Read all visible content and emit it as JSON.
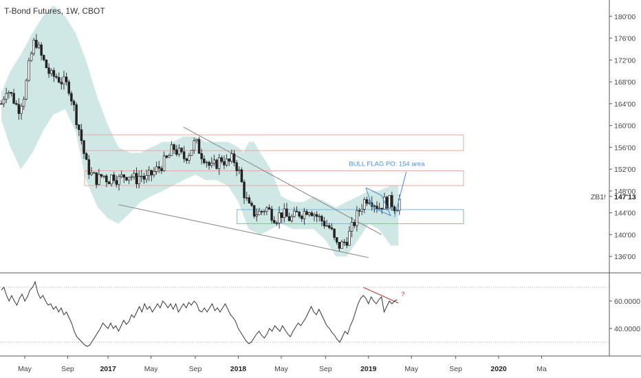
{
  "chart_data": {
    "type": "candlestick",
    "title": "T-Bond Futures, 1W, CBOT",
    "symbol_label": "ZB1!",
    "last_price_label": "147'13",
    "price_axis": {
      "range": [
        133,
        183
      ],
      "ticks": [
        136,
        140,
        144,
        148,
        152,
        156,
        160,
        164,
        168,
        172,
        176,
        180
      ],
      "tick_labels": [
        "136'00",
        "140'00",
        "144'00",
        "148'00",
        "152'00",
        "156'00",
        "160'00",
        "164'00",
        "168'00",
        "172'00",
        "176'00",
        "180'00"
      ]
    },
    "rsi_axis": {
      "range": [
        20,
        80
      ],
      "ticks": [
        40,
        60
      ],
      "tick_labels": [
        "40.0000",
        "60.0000"
      ],
      "bands": [
        30,
        70
      ]
    },
    "time_axis": {
      "range": [
        2016.17,
        2020.85
      ],
      "ticks": [
        {
          "t": 2016.36,
          "label": "May",
          "bold": false
        },
        {
          "t": 2016.69,
          "label": "Sep",
          "bold": false
        },
        {
          "t": 2017.0,
          "label": "2017",
          "bold": true
        },
        {
          "t": 2017.33,
          "label": "May",
          "bold": false
        },
        {
          "t": 2017.67,
          "label": "Sep",
          "bold": false
        },
        {
          "t": 2018.0,
          "label": "2018",
          "bold": true
        },
        {
          "t": 2018.33,
          "label": "May",
          "bold": false
        },
        {
          "t": 2018.67,
          "label": "Sep",
          "bold": false
        },
        {
          "t": 2019.0,
          "label": "2019",
          "bold": true
        },
        {
          "t": 2019.33,
          "label": "May",
          "bold": false
        },
        {
          "t": 2019.67,
          "label": "Sep",
          "bold": false
        },
        {
          "t": 2020.0,
          "label": "2020",
          "bold": true
        },
        {
          "t": 2020.33,
          "label": "Ma",
          "bold": false
        }
      ]
    },
    "price_path": [
      [
        2016.18,
        164
      ],
      [
        2016.22,
        167
      ],
      [
        2016.27,
        165
      ],
      [
        2016.31,
        163
      ],
      [
        2016.36,
        166
      ],
      [
        2016.4,
        172
      ],
      [
        2016.44,
        176
      ],
      [
        2016.48,
        173
      ],
      [
        2016.52,
        171
      ],
      [
        2016.56,
        169
      ],
      [
        2016.6,
        169
      ],
      [
        2016.65,
        168
      ],
      [
        2016.7,
        167
      ],
      [
        2016.75,
        162
      ],
      [
        2016.79,
        158
      ],
      [
        2016.83,
        153
      ],
      [
        2016.87,
        151
      ],
      [
        2016.92,
        150
      ],
      [
        2016.96,
        151
      ],
      [
        2017.0,
        150
      ],
      [
        2017.04,
        151
      ],
      [
        2017.08,
        150
      ],
      [
        2017.13,
        151
      ],
      [
        2017.17,
        151
      ],
      [
        2017.21,
        150
      ],
      [
        2017.25,
        151
      ],
      [
        2017.29,
        150
      ],
      [
        2017.33,
        151
      ],
      [
        2017.38,
        152
      ],
      [
        2017.42,
        153
      ],
      [
        2017.46,
        154
      ],
      [
        2017.5,
        156
      ],
      [
        2017.54,
        155
      ],
      [
        2017.58,
        154
      ],
      [
        2017.62,
        155
      ],
      [
        2017.67,
        157
      ],
      [
        2017.71,
        155
      ],
      [
        2017.75,
        154
      ],
      [
        2017.79,
        152
      ],
      [
        2017.83,
        153
      ],
      [
        2017.87,
        154
      ],
      [
        2017.92,
        153
      ],
      [
        2017.96,
        154
      ],
      [
        2018.0,
        152
      ],
      [
        2018.04,
        148
      ],
      [
        2018.08,
        145
      ],
      [
        2018.12,
        144
      ],
      [
        2018.17,
        144
      ],
      [
        2018.21,
        145
      ],
      [
        2018.25,
        144
      ],
      [
        2018.29,
        143
      ],
      [
        2018.33,
        144
      ],
      [
        2018.38,
        143
      ],
      [
        2018.42,
        143
      ],
      [
        2018.46,
        144
      ],
      [
        2018.5,
        144
      ],
      [
        2018.54,
        145
      ],
      [
        2018.58,
        144
      ],
      [
        2018.62,
        143
      ],
      [
        2018.67,
        142
      ],
      [
        2018.71,
        141
      ],
      [
        2018.75,
        138
      ],
      [
        2018.79,
        138
      ],
      [
        2018.83,
        139
      ],
      [
        2018.87,
        141
      ],
      [
        2018.92,
        144
      ],
      [
        2018.96,
        146
      ],
      [
        2019.0,
        147
      ],
      [
        2019.04,
        146
      ],
      [
        2019.08,
        145
      ],
      [
        2019.12,
        146
      ],
      [
        2019.17,
        146
      ],
      [
        2019.21,
        145
      ],
      [
        2019.25,
        147
      ]
    ],
    "rsi": [
      [
        2016.18,
        68
      ],
      [
        2016.2,
        70
      ],
      [
        2016.22,
        64
      ],
      [
        2016.24,
        60
      ],
      [
        2016.26,
        64
      ],
      [
        2016.28,
        60
      ],
      [
        2016.3,
        57
      ],
      [
        2016.32,
        62
      ],
      [
        2016.34,
        65
      ],
      [
        2016.36,
        60
      ],
      [
        2016.38,
        63
      ],
      [
        2016.4,
        68
      ],
      [
        2016.42,
        70
      ],
      [
        2016.44,
        74
      ],
      [
        2016.46,
        66
      ],
      [
        2016.48,
        62
      ],
      [
        2016.5,
        64
      ],
      [
        2016.52,
        60
      ],
      [
        2016.54,
        57
      ],
      [
        2016.56,
        58
      ],
      [
        2016.58,
        54
      ],
      [
        2016.6,
        56
      ],
      [
        2016.62,
        52
      ],
      [
        2016.64,
        55
      ],
      [
        2016.66,
        50
      ],
      [
        2016.68,
        52
      ],
      [
        2016.7,
        48
      ],
      [
        2016.72,
        44
      ],
      [
        2016.74,
        38
      ],
      [
        2016.76,
        34
      ],
      [
        2016.78,
        32
      ],
      [
        2016.8,
        30
      ],
      [
        2016.82,
        28
      ],
      [
        2016.84,
        27
      ],
      [
        2016.86,
        28
      ],
      [
        2016.88,
        31
      ],
      [
        2016.9,
        34
      ],
      [
        2016.92,
        37
      ],
      [
        2016.94,
        40
      ],
      [
        2016.96,
        44
      ],
      [
        2016.98,
        42
      ],
      [
        2017.0,
        40
      ],
      [
        2017.02,
        44
      ],
      [
        2017.04,
        40
      ],
      [
        2017.06,
        42
      ],
      [
        2017.08,
        38
      ],
      [
        2017.1,
        42
      ],
      [
        2017.12,
        46
      ],
      [
        2017.14,
        43
      ],
      [
        2017.16,
        45
      ],
      [
        2017.18,
        50
      ],
      [
        2017.2,
        48
      ],
      [
        2017.22,
        52
      ],
      [
        2017.24,
        56
      ],
      [
        2017.26,
        52
      ],
      [
        2017.28,
        58
      ],
      [
        2017.3,
        54
      ],
      [
        2017.32,
        56
      ],
      [
        2017.34,
        52
      ],
      [
        2017.36,
        55
      ],
      [
        2017.38,
        58
      ],
      [
        2017.4,
        55
      ],
      [
        2017.42,
        60
      ],
      [
        2017.44,
        58
      ],
      [
        2017.46,
        55
      ],
      [
        2017.48,
        58
      ],
      [
        2017.5,
        54
      ],
      [
        2017.52,
        58
      ],
      [
        2017.54,
        52
      ],
      [
        2017.56,
        55
      ],
      [
        2017.58,
        58
      ],
      [
        2017.6,
        55
      ],
      [
        2017.62,
        59
      ],
      [
        2017.64,
        57
      ],
      [
        2017.66,
        60
      ],
      [
        2017.68,
        58
      ],
      [
        2017.7,
        53
      ],
      [
        2017.72,
        52
      ],
      [
        2017.74,
        55
      ],
      [
        2017.76,
        52
      ],
      [
        2017.78,
        55
      ],
      [
        2017.8,
        58
      ],
      [
        2017.82,
        53
      ],
      [
        2017.84,
        55
      ],
      [
        2017.86,
        52
      ],
      [
        2017.88,
        55
      ],
      [
        2017.9,
        58
      ],
      [
        2017.92,
        54
      ],
      [
        2017.94,
        50
      ],
      [
        2017.96,
        48
      ],
      [
        2017.98,
        45
      ],
      [
        2018.0,
        40
      ],
      [
        2018.02,
        37
      ],
      [
        2018.04,
        34
      ],
      [
        2018.06,
        31
      ],
      [
        2018.08,
        29
      ],
      [
        2018.1,
        30
      ],
      [
        2018.12,
        33
      ],
      [
        2018.14,
        36
      ],
      [
        2018.16,
        38
      ],
      [
        2018.18,
        35
      ],
      [
        2018.2,
        33
      ],
      [
        2018.22,
        36
      ],
      [
        2018.24,
        40
      ],
      [
        2018.26,
        38
      ],
      [
        2018.28,
        42
      ],
      [
        2018.3,
        40
      ],
      [
        2018.32,
        38
      ],
      [
        2018.34,
        42
      ],
      [
        2018.36,
        39
      ],
      [
        2018.38,
        36
      ],
      [
        2018.4,
        34
      ],
      [
        2018.42,
        38
      ],
      [
        2018.44,
        41
      ],
      [
        2018.46,
        44
      ],
      [
        2018.48,
        42
      ],
      [
        2018.5,
        45
      ],
      [
        2018.52,
        48
      ],
      [
        2018.54,
        52
      ],
      [
        2018.56,
        56
      ],
      [
        2018.58,
        52
      ],
      [
        2018.6,
        50
      ],
      [
        2018.62,
        54
      ],
      [
        2018.64,
        50
      ],
      [
        2018.66,
        46
      ],
      [
        2018.68,
        42
      ],
      [
        2018.7,
        40
      ],
      [
        2018.72,
        37
      ],
      [
        2018.74,
        35
      ],
      [
        2018.76,
        32
      ],
      [
        2018.78,
        30
      ],
      [
        2018.8,
        34
      ],
      [
        2018.82,
        38
      ],
      [
        2018.84,
        36
      ],
      [
        2018.86,
        42
      ],
      [
        2018.88,
        46
      ],
      [
        2018.9,
        52
      ],
      [
        2018.92,
        58
      ],
      [
        2018.94,
        62
      ],
      [
        2018.96,
        64
      ],
      [
        2018.98,
        62
      ],
      [
        2019.0,
        58
      ],
      [
        2019.02,
        63
      ],
      [
        2019.04,
        60
      ],
      [
        2019.06,
        58
      ],
      [
        2019.08,
        61
      ],
      [
        2019.1,
        63
      ],
      [
        2019.12,
        52
      ],
      [
        2019.14,
        56
      ],
      [
        2019.16,
        60
      ],
      [
        2019.18,
        58
      ],
      [
        2019.2,
        60
      ],
      [
        2019.22,
        61
      ]
    ],
    "bollinger_band_upper": [
      [
        2016.18,
        166
      ],
      [
        2016.25,
        170
      ],
      [
        2016.33,
        173
      ],
      [
        2016.42,
        177
      ],
      [
        2016.5,
        180
      ],
      [
        2016.58,
        182
      ],
      [
        2016.67,
        180
      ],
      [
        2016.75,
        177
      ],
      [
        2016.83,
        172
      ],
      [
        2016.92,
        165
      ],
      [
        2017.0,
        160
      ],
      [
        2017.08,
        156
      ],
      [
        2017.17,
        155
      ],
      [
        2017.25,
        155
      ],
      [
        2017.33,
        156
      ],
      [
        2017.42,
        157
      ],
      [
        2017.5,
        157
      ],
      [
        2017.58,
        158
      ],
      [
        2017.67,
        158
      ],
      [
        2017.75,
        157
      ],
      [
        2017.83,
        157
      ],
      [
        2017.92,
        157
      ],
      [
        2018.0,
        156
      ],
      [
        2018.04,
        155
      ],
      [
        2018.08,
        157
      ],
      [
        2018.12,
        157
      ],
      [
        2018.17,
        155
      ],
      [
        2018.25,
        152
      ],
      [
        2018.33,
        147
      ],
      [
        2018.42,
        146
      ],
      [
        2018.5,
        146
      ],
      [
        2018.58,
        147
      ],
      [
        2018.67,
        146
      ],
      [
        2018.75,
        145
      ],
      [
        2018.83,
        146
      ],
      [
        2018.92,
        147
      ],
      [
        2019.0,
        148
      ],
      [
        2019.08,
        148
      ],
      [
        2019.17,
        149
      ],
      [
        2019.23,
        149
      ]
    ],
    "bollinger_band_lower": [
      [
        2016.18,
        161
      ],
      [
        2016.25,
        156
      ],
      [
        2016.33,
        152
      ],
      [
        2016.42,
        155
      ],
      [
        2016.5,
        159
      ],
      [
        2016.58,
        162
      ],
      [
        2016.67,
        163
      ],
      [
        2016.75,
        159
      ],
      [
        2016.83,
        150
      ],
      [
        2016.92,
        145
      ],
      [
        2017.0,
        143
      ],
      [
        2017.08,
        142
      ],
      [
        2017.17,
        144
      ],
      [
        2017.25,
        146
      ],
      [
        2017.33,
        147
      ],
      [
        2017.42,
        148
      ],
      [
        2017.5,
        149
      ],
      [
        2017.58,
        150
      ],
      [
        2017.67,
        151
      ],
      [
        2017.75,
        150
      ],
      [
        2017.83,
        150
      ],
      [
        2017.92,
        149
      ],
      [
        2018.0,
        146
      ],
      [
        2018.08,
        141
      ],
      [
        2018.17,
        140
      ],
      [
        2018.25,
        141
      ],
      [
        2018.33,
        142
      ],
      [
        2018.42,
        141
      ],
      [
        2018.5,
        141
      ],
      [
        2018.58,
        141
      ],
      [
        2018.67,
        139
      ],
      [
        2018.75,
        136
      ],
      [
        2018.83,
        136
      ],
      [
        2018.92,
        139
      ],
      [
        2019.0,
        142
      ],
      [
        2019.08,
        141
      ],
      [
        2019.17,
        138
      ],
      [
        2019.23,
        138
      ]
    ],
    "zones": [
      {
        "t0": 2016.8,
        "t1": 2019.73,
        "p0": 155.4,
        "p1": 158.3,
        "color": "#e8a8a0"
      },
      {
        "t0": 2016.82,
        "t1": 2019.73,
        "p0": 149.0,
        "p1": 151.7,
        "color": "#e8a8a0"
      },
      {
        "t0": 2017.99,
        "t1": 2019.73,
        "p0": 142.0,
        "p1": 144.6,
        "color": "#7fb6dc"
      }
    ],
    "trendlines": [
      {
        "t0": 2017.58,
        "p0": 159.7,
        "t1": 2019.1,
        "p1": 140.0,
        "color": "#8c8c8c",
        "pane": "price"
      },
      {
        "t0": 2017.08,
        "p0": 145.5,
        "t1": 2019.0,
        "p1": 135.8,
        "color": "#8c8c8c",
        "pane": "price"
      },
      {
        "t0": 2018.96,
        "p0": 70.0,
        "t1": 2019.23,
        "p1": 58.5,
        "color": "#c0392b",
        "pane": "rsi"
      }
    ],
    "bull_flag": {
      "points": [
        [
          2018.98,
          148.6
        ],
        [
          2019.1,
          147.2
        ],
        [
          2019.17,
          143.5
        ],
        [
          2019.03,
          145.0
        ],
        [
          2018.98,
          148.6
        ]
      ],
      "projection": [
        [
          2019.2,
          143.2
        ],
        [
          2019.29,
          151.5
        ]
      ],
      "label": "BULL FLAG PO: 154 area",
      "label_t": 2018.85,
      "label_p": 152.6,
      "color": "#4a90d9"
    },
    "rsi_annotation": {
      "text": "?",
      "t": 2019.25,
      "v": 63.5,
      "color": "#c0392b"
    }
  }
}
